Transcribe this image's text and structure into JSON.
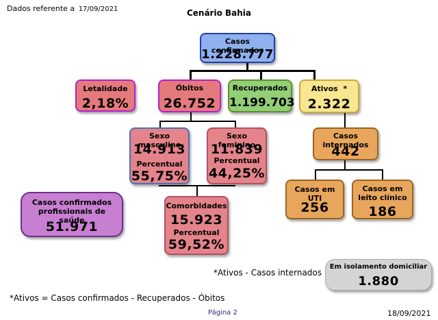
{
  "header": {
    "dados_label": "Dados referente a",
    "dados_date": "17/09/2021",
    "title": "Cenário Bahia"
  },
  "nodes": {
    "casos_confirmados": {
      "label": "Casos confirmados",
      "value": "1.228.777"
    },
    "letalidade": {
      "label": "Letalidade",
      "value": "2,18%"
    },
    "obitos": {
      "label": "Óbitos",
      "value": "26.752"
    },
    "recuperados": {
      "label": "Recuperados",
      "value": "1.199.703"
    },
    "ativos": {
      "label": "Ativos  *",
      "value": "2.322"
    },
    "sexo_masculino": {
      "label": "Sexo masculino",
      "value": "14.913",
      "pct_label": "Percentual",
      "pct": "55,75%"
    },
    "sexo_feminino": {
      "label": "Sexo feminino",
      "value": "11.839",
      "pct_label": "Percentual",
      "pct": "44,25%"
    },
    "comorbidades": {
      "label": "Comorbidades",
      "value": "15.923",
      "pct_label": "Percentual",
      "pct": "59,52%"
    },
    "casos_internados": {
      "label": "Casos internados",
      "value": "442"
    },
    "casos_uti": {
      "label": "Casos em UTI",
      "value": "256"
    },
    "casos_leito": {
      "label": "Casos em leito clínico",
      "value": "186"
    },
    "profissionais": {
      "label": "Casos confirmados profissionais de saúde",
      "value": "51.971"
    },
    "isolamento": {
      "label": "Em isolamento domiciliar",
      "value": "1.880"
    }
  },
  "notes": {
    "ativos_formula": "*Ativos - Casos internados =",
    "footnote": "*Ativos = Casos confirmados - Recuperados - Óbitos"
  },
  "footer": {
    "page": "Página 2",
    "date": "18/09/2021"
  }
}
